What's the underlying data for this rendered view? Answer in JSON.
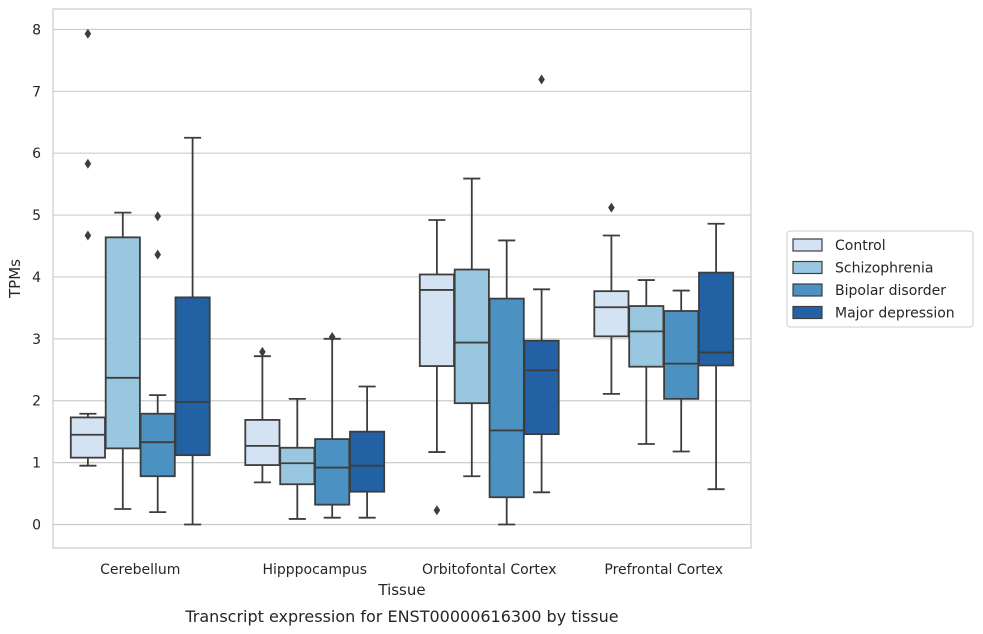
{
  "caption": "Transcript expression for ENST00000616300 by tissue",
  "chart_data": {
    "type": "box",
    "xlabel": "Tissue",
    "ylabel": "TPMs",
    "ylim": [
      -0.38,
      8.33
    ],
    "yticks": [
      "0",
      "1",
      "2",
      "3",
      "4",
      "5",
      "6",
      "7",
      "8"
    ],
    "grid": true,
    "legend_position": "right",
    "categories": [
      "Cerebellum",
      "Hipppocampus",
      "Orbitofontal Cortex",
      "Prefrontal Cortex"
    ],
    "series": [
      {
        "name": "Control",
        "color": "#d3e3f3",
        "boxes": [
          {
            "whisker_low": 0.95,
            "q1": 1.08,
            "median": 1.45,
            "q3": 1.73,
            "whisker_high": 1.79,
            "outliers": [
              7.93,
              5.83,
              4.67
            ]
          },
          {
            "whisker_low": 0.68,
            "q1": 0.96,
            "median": 1.27,
            "q3": 1.69,
            "whisker_high": 2.72,
            "outliers": [
              2.79
            ]
          },
          {
            "whisker_low": 1.17,
            "q1": 2.56,
            "median": 3.79,
            "q3": 4.04,
            "whisker_high": 4.92,
            "outliers": [
              0.23
            ]
          },
          {
            "whisker_low": 2.11,
            "q1": 3.04,
            "median": 3.51,
            "q3": 3.77,
            "whisker_high": 4.67,
            "outliers": [
              5.12
            ]
          }
        ]
      },
      {
        "name": "Schizophrenia",
        "color": "#9ac7e0",
        "boxes": [
          {
            "whisker_low": 0.25,
            "q1": 1.23,
            "median": 2.37,
            "q3": 4.64,
            "whisker_high": 5.04,
            "outliers": []
          },
          {
            "whisker_low": 0.09,
            "q1": 0.65,
            "median": 0.99,
            "q3": 1.24,
            "whisker_high": 2.03,
            "outliers": []
          },
          {
            "whisker_low": 0.78,
            "q1": 1.96,
            "median": 2.94,
            "q3": 4.12,
            "whisker_high": 5.59,
            "outliers": []
          },
          {
            "whisker_low": 1.3,
            "q1": 2.55,
            "median": 3.12,
            "q3": 3.53,
            "whisker_high": 3.95,
            "outliers": []
          }
        ]
      },
      {
        "name": "Bipolar disorder",
        "color": "#4b91c2",
        "boxes": [
          {
            "whisker_low": 0.2,
            "q1": 0.78,
            "median": 1.33,
            "q3": 1.79,
            "whisker_high": 2.09,
            "outliers": [
              4.98,
              4.36
            ]
          },
          {
            "whisker_low": 0.11,
            "q1": 0.32,
            "median": 0.92,
            "q3": 1.38,
            "whisker_high": 3.0,
            "outliers": [
              3.03
            ]
          },
          {
            "whisker_low": 0.0,
            "q1": 0.44,
            "median": 1.52,
            "q3": 3.65,
            "whisker_high": 4.59,
            "outliers": []
          },
          {
            "whisker_low": 1.18,
            "q1": 2.03,
            "median": 2.6,
            "q3": 3.45,
            "whisker_high": 3.78,
            "outliers": []
          }
        ]
      },
      {
        "name": "Major depression",
        "color": "#2361a5",
        "boxes": [
          {
            "whisker_low": 0.0,
            "q1": 1.12,
            "median": 1.98,
            "q3": 3.67,
            "whisker_high": 6.25,
            "outliers": []
          },
          {
            "whisker_low": 0.11,
            "q1": 0.53,
            "median": 0.95,
            "q3": 1.5,
            "whisker_high": 2.23,
            "outliers": []
          },
          {
            "whisker_low": 0.52,
            "q1": 1.46,
            "median": 2.49,
            "q3": 2.97,
            "whisker_high": 3.8,
            "outliers": [
              7.19
            ]
          },
          {
            "whisker_low": 0.57,
            "q1": 2.57,
            "median": 2.78,
            "q3": 4.07,
            "whisker_high": 4.86,
            "outliers": []
          }
        ]
      }
    ]
  }
}
